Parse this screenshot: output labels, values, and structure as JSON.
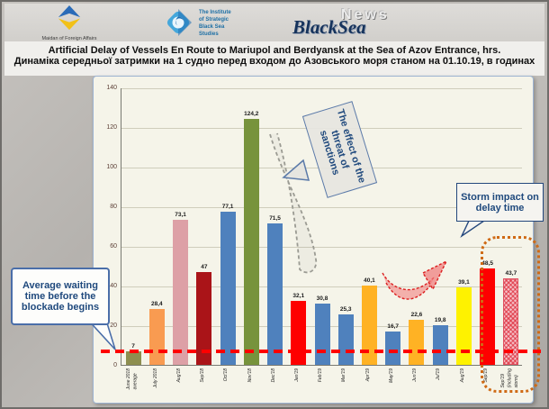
{
  "header": {
    "maidan_label": "Maidan of Foreign Affairs",
    "institute_lines": [
      "The Institute",
      "of Strategic",
      "Black Sea",
      "Studies"
    ],
    "news_word": "News",
    "blacksea_word": "BlackSea"
  },
  "title": {
    "line1": "Artificial Delay of Vessels En Route to Mariupol and Berdyansk at the Sea of Azov Entrance, hrs.",
    "line2": "Динаміка середньої затримки на 1 судно перед входом до Азовського моря станом на 01.10.19, в годинах"
  },
  "chart_data": {
    "type": "bar",
    "title": "Artificial Delay of Vessels En Route to Mariupol and Berdyansk at the Sea of Azov Entrance, hrs.",
    "categories": [
      "June 2018\naverage",
      "July 2018",
      "Aug'18",
      "Sep'18",
      "Oct'18",
      "Nov'18",
      "Dec'18",
      "Jan'19",
      "Feb'19",
      "Mar'19",
      "Apr'19",
      "May'19",
      "Jun'19",
      "Jul'19",
      "Aug'19",
      "Sep'19",
      "Sep'19\n(including\nstorm)"
    ],
    "values": [
      7,
      28.4,
      73.1,
      47,
      77.1,
      124.2,
      71.5,
      32.1,
      30.8,
      25.3,
      40.1,
      16.7,
      22.6,
      19.8,
      39.1,
      48.5,
      43.7
    ],
    "value_labels": [
      "7",
      "28,4",
      "73,1",
      "47",
      "77,1",
      "124,2",
      "71,5",
      "32,1",
      "30,8",
      "25,3",
      "40,1",
      "16,7",
      "22,6",
      "19,8",
      "39,1",
      "48,5",
      "43,7"
    ],
    "bar_colors": [
      "#8d8e4f",
      "#f99b51",
      "#dda0a6",
      "#aa1418",
      "#4f81bd",
      "#77933c",
      "#4f81bd",
      "#fe0000",
      "#4f81bd",
      "#4f81bd",
      "#ffb224",
      "#4f81bd",
      "#ffb224",
      "#4f81bd",
      "#fef200",
      "#fe0000",
      "#f6c2c8"
    ],
    "hatched": [
      false,
      false,
      false,
      false,
      false,
      false,
      false,
      false,
      false,
      false,
      false,
      false,
      false,
      false,
      false,
      false,
      true
    ],
    "xlabel": "",
    "ylabel": "",
    "ylim": [
      0,
      140
    ],
    "y_ticks": [
      0,
      20,
      40,
      60,
      80,
      100,
      120,
      140
    ],
    "grid": true,
    "legend": "none",
    "reference_line": {
      "value": 7,
      "color": "#fe0000",
      "style": "dashed"
    }
  },
  "annotations": {
    "avg_wait": "Average waiting time before the blockade begins",
    "sanctions": "The effect of the threat of sanctions",
    "storm": "Storm impact on delay time"
  }
}
